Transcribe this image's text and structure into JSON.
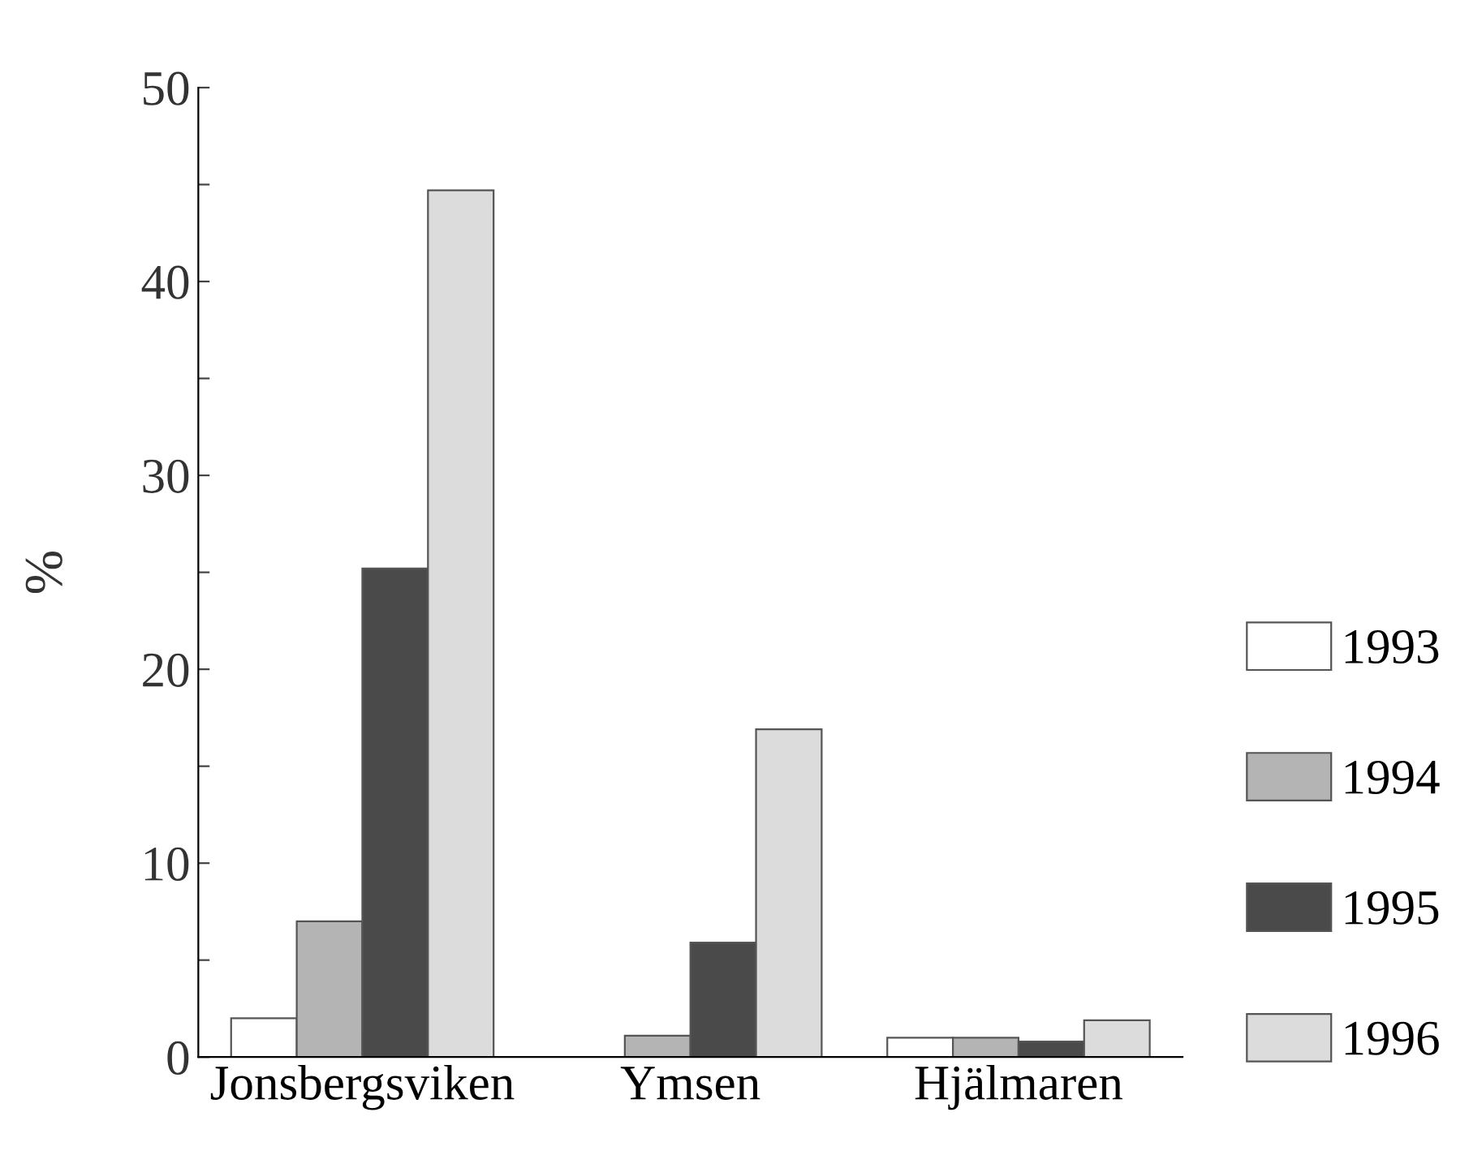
{
  "chart_data": {
    "type": "bar",
    "ylabel": "%",
    "categories": [
      "Jonsbergsviken",
      "Ymsen",
      "Hjälmaren"
    ],
    "series": [
      {
        "name": "1993",
        "color": "#ffffff",
        "values": [
          2.0,
          null,
          1.0
        ]
      },
      {
        "name": "1994",
        "color": "#b4b4b4",
        "values": [
          7.0,
          1.1,
          1.0
        ]
      },
      {
        "name": "1995",
        "color": "#4a4a4a",
        "values": [
          25.2,
          5.9,
          0.8
        ]
      },
      {
        "name": "1996",
        "color": "#dcdcdc",
        "values": [
          44.7,
          16.9,
          1.9
        ]
      }
    ],
    "ylim": [
      0,
      50
    ],
    "yticks": [
      0,
      {
        "value": 5,
        "label": null
      },
      10,
      {
        "value": 15,
        "label": null
      },
      20,
      {
        "value": 25,
        "label": null
      },
      30,
      {
        "value": 35,
        "label": null
      },
      40,
      {
        "value": 45,
        "label": null
      },
      50
    ],
    "grid": false,
    "legend": "right"
  }
}
